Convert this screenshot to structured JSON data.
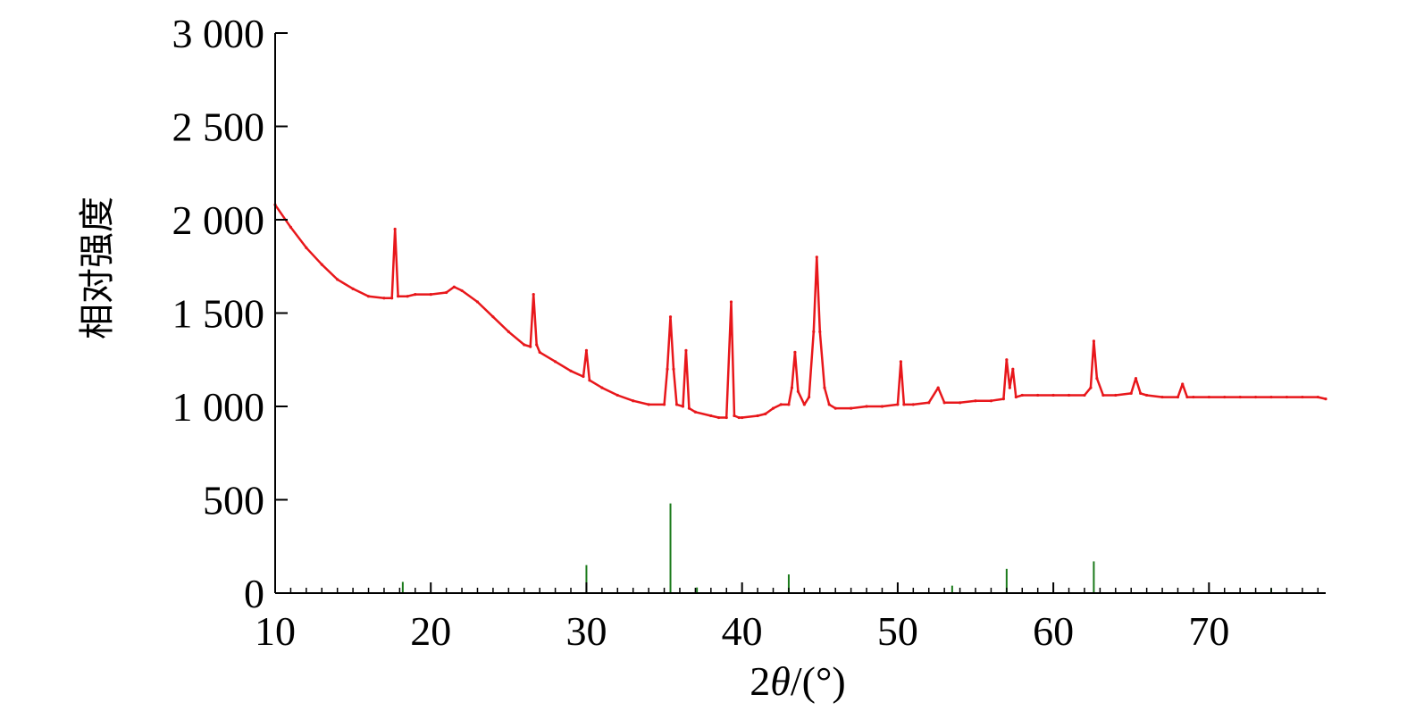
{
  "chart_data": {
    "type": "line",
    "title": "",
    "xlabel_main": "2",
    "xlabel_theta": "θ",
    "xlabel_unit": "/(°)",
    "ylabel": "相对强度",
    "xlim": [
      10,
      77.5
    ],
    "ylim": [
      0,
      3000
    ],
    "xticks": [
      10,
      20,
      30,
      40,
      50,
      60,
      70
    ],
    "xtick_labels": [
      "10",
      "20",
      "30",
      "40",
      "50",
      "60",
      "70"
    ],
    "yticks": [
      0,
      500,
      1000,
      1500,
      2000,
      2500,
      3000
    ],
    "ytick_labels": [
      "0",
      "500",
      "1 000",
      "1 500",
      "2 000",
      "2 500",
      "3 000"
    ],
    "grid": false,
    "legend": "none",
    "series": [
      {
        "kind": "line",
        "color": "#e8171b",
        "x": [
          10,
          11,
          12,
          13,
          14,
          15,
          16,
          17,
          17.5,
          17.7,
          17.9,
          18.5,
          19,
          20,
          21,
          21.5,
          22,
          23,
          24,
          25,
          26,
          26.4,
          26.6,
          26.8,
          27,
          28,
          29,
          29.8,
          30,
          30.2,
          31,
          32,
          33,
          34,
          35,
          35.2,
          35.4,
          35.6,
          35.8,
          36.2,
          36.4,
          36.6,
          37,
          38,
          38.5,
          39,
          39.3,
          39.5,
          39.8,
          40,
          41,
          41.5,
          42,
          42.5,
          43,
          43.2,
          43.4,
          43.6,
          44,
          44.3,
          44.6,
          44.8,
          45,
          45.3,
          45.6,
          46,
          47,
          48,
          49,
          50,
          50.2,
          50.4,
          51,
          52,
          52.6,
          53,
          54,
          55,
          56,
          56.8,
          57,
          57.2,
          57.4,
          57.6,
          58,
          59,
          60,
          61,
          62,
          62.4,
          62.6,
          62.8,
          63.2,
          64,
          65,
          65.3,
          65.6,
          66,
          67,
          68,
          68.3,
          68.6,
          69,
          70,
          71,
          72,
          73,
          74,
          75,
          76,
          77,
          77.5
        ],
        "y": [
          2080,
          1960,
          1850,
          1760,
          1680,
          1630,
          1590,
          1580,
          1580,
          1950,
          1590,
          1590,
          1600,
          1600,
          1610,
          1640,
          1620,
          1560,
          1480,
          1400,
          1330,
          1320,
          1600,
          1330,
          1290,
          1240,
          1190,
          1160,
          1300,
          1140,
          1100,
          1060,
          1030,
          1010,
          1010,
          1200,
          1480,
          1200,
          1010,
          1000,
          1300,
          990,
          970,
          950,
          940,
          940,
          1560,
          950,
          940,
          940,
          950,
          960,
          990,
          1010,
          1010,
          1100,
          1290,
          1080,
          1010,
          1050,
          1400,
          1800,
          1400,
          1100,
          1010,
          990,
          990,
          1000,
          1000,
          1010,
          1240,
          1010,
          1010,
          1020,
          1100,
          1020,
          1020,
          1030,
          1030,
          1040,
          1250,
          1100,
          1200,
          1050,
          1060,
          1060,
          1060,
          1060,
          1060,
          1100,
          1350,
          1150,
          1060,
          1060,
          1070,
          1150,
          1070,
          1060,
          1050,
          1050,
          1120,
          1050,
          1050,
          1050,
          1050,
          1050,
          1050,
          1050,
          1050,
          1050,
          1050,
          1040
        ]
      },
      {
        "kind": "sticks",
        "color": "#1a7a1a",
        "x": [
          18.2,
          30.0,
          35.4,
          37.1,
          43.0,
          53.5,
          57.0,
          62.6,
          74.0
        ],
        "y": [
          60,
          150,
          480,
          30,
          100,
          40,
          130,
          170,
          25
        ]
      }
    ]
  }
}
